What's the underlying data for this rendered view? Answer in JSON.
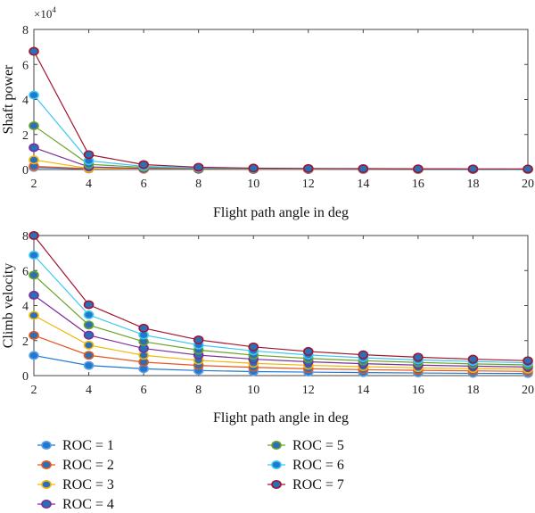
{
  "chart_data": [
    {
      "type": "line",
      "title": "",
      "xlabel": "Flight path angle in deg",
      "ylabel": "Shaft power",
      "y_multiplier": "×10",
      "y_multiplier_exp": "4",
      "xlim": [
        2,
        20
      ],
      "ylim": [
        0,
        8
      ],
      "xticks": [
        2,
        4,
        6,
        8,
        10,
        12,
        14,
        16,
        18,
        20
      ],
      "yticks": [
        0,
        2,
        4,
        6,
        8
      ],
      "x": [
        2,
        4,
        6,
        8,
        10,
        12,
        14,
        16,
        18,
        20
      ],
      "series": [
        {
          "name": "ROC = 1",
          "values": [
            0.12,
            0.03,
            0.012,
            0.006,
            0.004,
            0.003,
            0.002,
            0.0015,
            0.001,
            0.001
          ]
        },
        {
          "name": "ROC = 2",
          "values": [
            0.18,
            0.05,
            0.025,
            0.015,
            0.01,
            0.008,
            0.006,
            0.005,
            0.004,
            0.003
          ]
        },
        {
          "name": "ROC = 3",
          "values": [
            0.55,
            0.06,
            0.035,
            0.02,
            0.015,
            0.012,
            0.01,
            0.008,
            0.006,
            0.005
          ]
        },
        {
          "name": "ROC = 4",
          "values": [
            1.25,
            0.15,
            0.06,
            0.03,
            0.02,
            0.015,
            0.012,
            0.01,
            0.008,
            0.006
          ]
        },
        {
          "name": "ROC = 5",
          "values": [
            2.5,
            0.3,
            0.12,
            0.06,
            0.04,
            0.03,
            0.025,
            0.02,
            0.015,
            0.012
          ]
        },
        {
          "name": "ROC = 6",
          "values": [
            4.25,
            0.5,
            0.18,
            0.09,
            0.06,
            0.045,
            0.035,
            0.03,
            0.025,
            0.02
          ]
        },
        {
          "name": "ROC = 7",
          "values": [
            6.75,
            0.85,
            0.28,
            0.13,
            0.08,
            0.06,
            0.05,
            0.04,
            0.035,
            0.03
          ]
        }
      ]
    },
    {
      "type": "line",
      "title": "",
      "xlabel": "Flight path angle in deg",
      "ylabel": "Climb velocity",
      "xlim": [
        2,
        20
      ],
      "ylim": [
        0,
        8
      ],
      "xticks": [
        2,
        4,
        6,
        8,
        10,
        12,
        14,
        16,
        18,
        20
      ],
      "yticks": [
        0,
        2,
        4,
        6,
        8
      ],
      "x": [
        2,
        4,
        6,
        8,
        10,
        12,
        14,
        16,
        18,
        20
      ],
      "series": [
        {
          "name": "ROC = 1",
          "values": [
            1.15,
            0.58,
            0.39,
            0.29,
            0.23,
            0.2,
            0.17,
            0.15,
            0.13,
            0.12
          ]
        },
        {
          "name": "ROC = 2",
          "values": [
            2.3,
            1.16,
            0.77,
            0.58,
            0.47,
            0.39,
            0.34,
            0.3,
            0.27,
            0.24
          ]
        },
        {
          "name": "ROC = 3",
          "values": [
            3.44,
            1.74,
            1.16,
            0.87,
            0.7,
            0.59,
            0.51,
            0.45,
            0.4,
            0.36
          ]
        },
        {
          "name": "ROC = 4",
          "values": [
            4.59,
            2.31,
            1.55,
            1.17,
            0.94,
            0.79,
            0.68,
            0.6,
            0.54,
            0.49
          ]
        },
        {
          "name": "ROC = 5",
          "values": [
            5.74,
            2.89,
            1.94,
            1.46,
            1.17,
            0.98,
            0.85,
            0.75,
            0.67,
            0.61
          ]
        },
        {
          "name": "ROC = 6",
          "values": [
            6.88,
            3.47,
            2.32,
            1.75,
            1.41,
            1.18,
            1.02,
            0.9,
            0.81,
            0.73
          ]
        },
        {
          "name": "ROC = 7",
          "values": [
            8.0,
            4.05,
            2.71,
            2.04,
            1.64,
            1.38,
            1.19,
            1.05,
            0.94,
            0.85
          ]
        }
      ]
    }
  ],
  "legend": {
    "placement": "bottom",
    "entries": [
      "ROC = 1",
      "ROC = 2",
      "ROC = 3",
      "ROC = 4",
      "ROC = 5",
      "ROC = 6",
      "ROC = 7"
    ]
  },
  "colors": {
    "ROC = 1": {
      "line": "#1f78d1",
      "face": "#1f78d1",
      "edge": "#5fa0e0"
    },
    "ROC = 2": {
      "line": "#e8551e",
      "face": "#2a6fb8",
      "edge": "#e8551e"
    },
    "ROC = 3": {
      "line": "#f2b705",
      "face": "#2a6fb8",
      "edge": "#f2b705"
    },
    "ROC = 4": {
      "line": "#7b2d9b",
      "face": "#2a6fb8",
      "edge": "#7b2d9b"
    },
    "ROC = 5": {
      "line": "#6aa329",
      "face": "#2a6fb8",
      "edge": "#6aa329"
    },
    "ROC = 6": {
      "line": "#3cc7f0",
      "face": "#1f78d1",
      "edge": "#3cc7f0"
    },
    "ROC = 7": {
      "line": "#a2142f",
      "face": "#2a6fb8",
      "edge": "#a2142f"
    }
  }
}
